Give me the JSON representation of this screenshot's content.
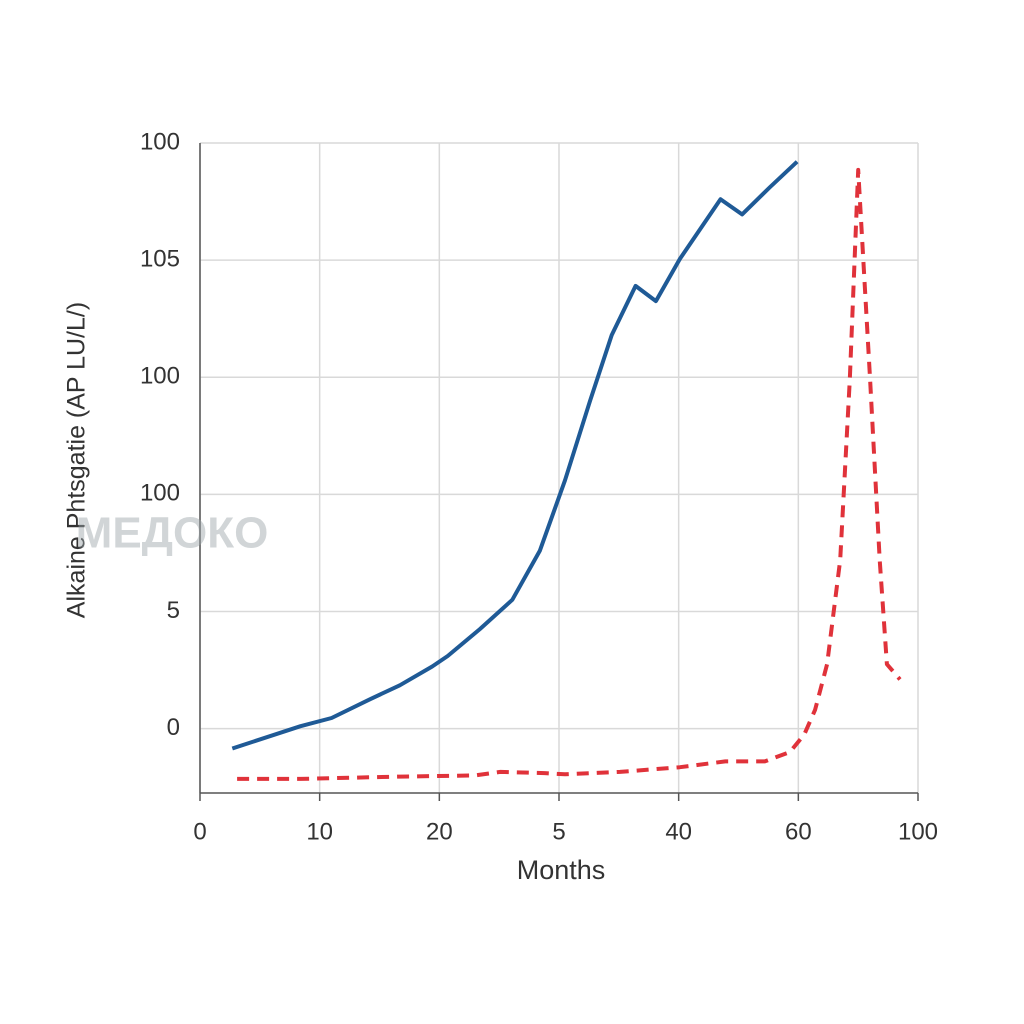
{
  "chart_data": {
    "type": "line",
    "y_label": "Alkaine Phtsgatie (AP LU/L/)",
    "x_label": "Months",
    "watermark": "МЕДОКО",
    "xlim": [
      0,
      6
    ],
    "ylim": [
      -0.55,
      5
    ],
    "xticks": [
      0,
      {
        "value": 1,
        "label": "10"
      },
      {
        "value": 2,
        "label": "20"
      },
      {
        "value": 3,
        "label": "5"
      },
      {
        "value": 4,
        "label": "40"
      },
      {
        "value": 5,
        "label": "60"
      },
      {
        "value": 6,
        "label": "100"
      }
    ],
    "yticks": [
      0,
      {
        "value": 1,
        "label": "5"
      },
      {
        "value": 2,
        "label": "100"
      },
      {
        "value": 3,
        "label": "100"
      },
      {
        "value": 4,
        "label": "105"
      },
      {
        "value": 5,
        "label": "100"
      }
    ],
    "grid": true,
    "series": [
      {
        "color": "#1f5a96",
        "line_style": "solid",
        "x": [
          0.27,
          0.84,
          1.1,
          1.42,
          1.67,
          1.94,
          2.07,
          2.34,
          2.61,
          2.84,
          3.05,
          3.26,
          3.44,
          3.64,
          3.81,
          4.01,
          4.35,
          4.53,
          4.76,
          4.99
        ],
        "values": [
          -0.17,
          0.02,
          0.09,
          0.25,
          0.37,
          0.53,
          0.62,
          0.85,
          1.1,
          1.52,
          2.12,
          2.8,
          3.36,
          3.78,
          3.65,
          4.01,
          4.52,
          4.39,
          4.62,
          4.84
        ]
      },
      {
        "color": "#e0323a",
        "line_style": "dashed",
        "x": [
          0.31,
          0.84,
          1.67,
          2.3,
          2.51,
          2.88,
          3.05,
          3.51,
          4.01,
          4.39,
          4.72,
          4.93,
          5.05,
          5.14,
          5.24,
          5.35,
          5.43,
          5.5,
          5.6,
          5.68,
          5.74,
          5.85
        ],
        "values": [
          -0.43,
          -0.43,
          -0.41,
          -0.4,
          -0.37,
          -0.38,
          -0.39,
          -0.37,
          -0.33,
          -0.28,
          -0.28,
          -0.2,
          -0.05,
          0.16,
          0.55,
          1.44,
          2.98,
          4.77,
          2.98,
          1.44,
          0.55,
          0.42
        ]
      }
    ]
  }
}
